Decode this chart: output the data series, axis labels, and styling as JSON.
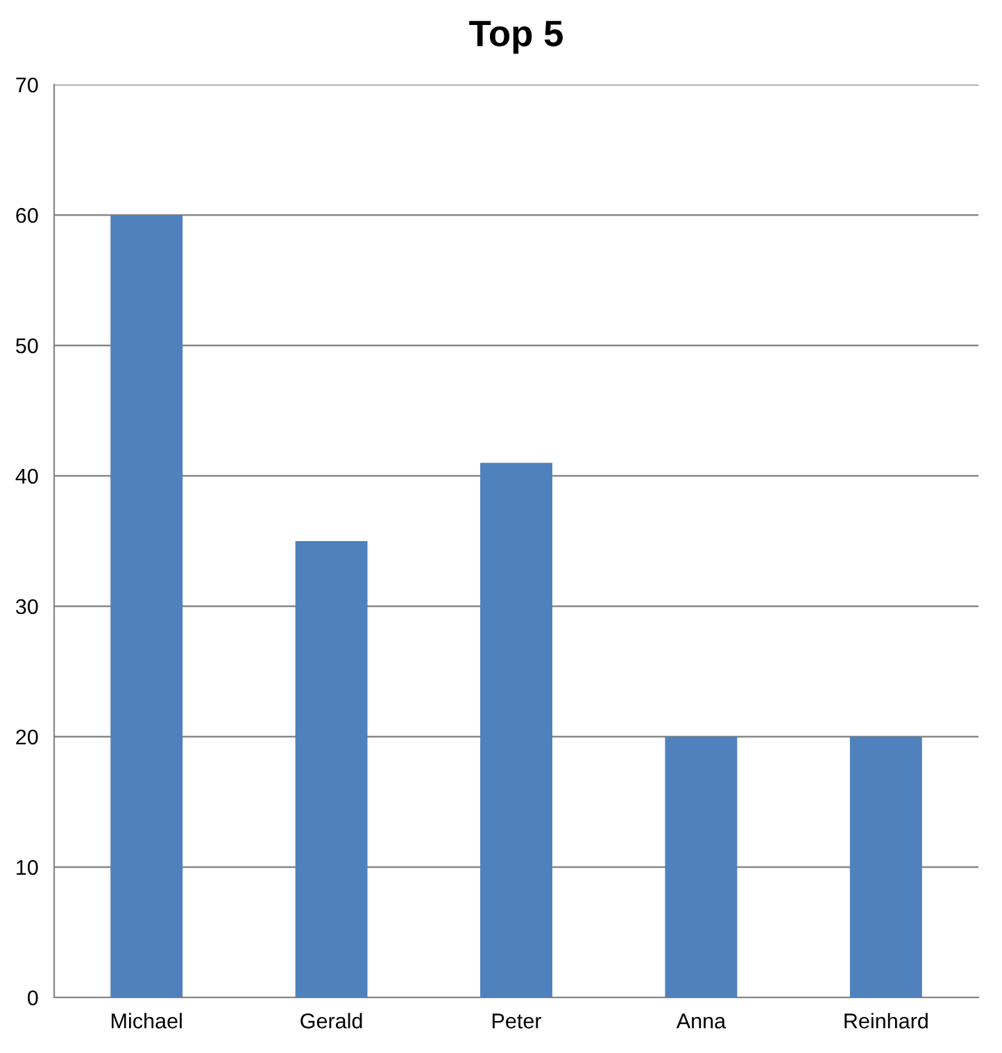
{
  "chart_data": {
    "type": "bar",
    "title": "Top 5",
    "categories": [
      "Michael",
      "Gerald",
      "Peter",
      "Anna",
      "Reinhard"
    ],
    "values": [
      60,
      35,
      41,
      20,
      20
    ],
    "color": "#4f81bd",
    "ylim": [
      0,
      70
    ],
    "yticks": [
      0,
      10,
      20,
      30,
      40,
      50,
      60,
      70
    ],
    "grid": "y"
  }
}
